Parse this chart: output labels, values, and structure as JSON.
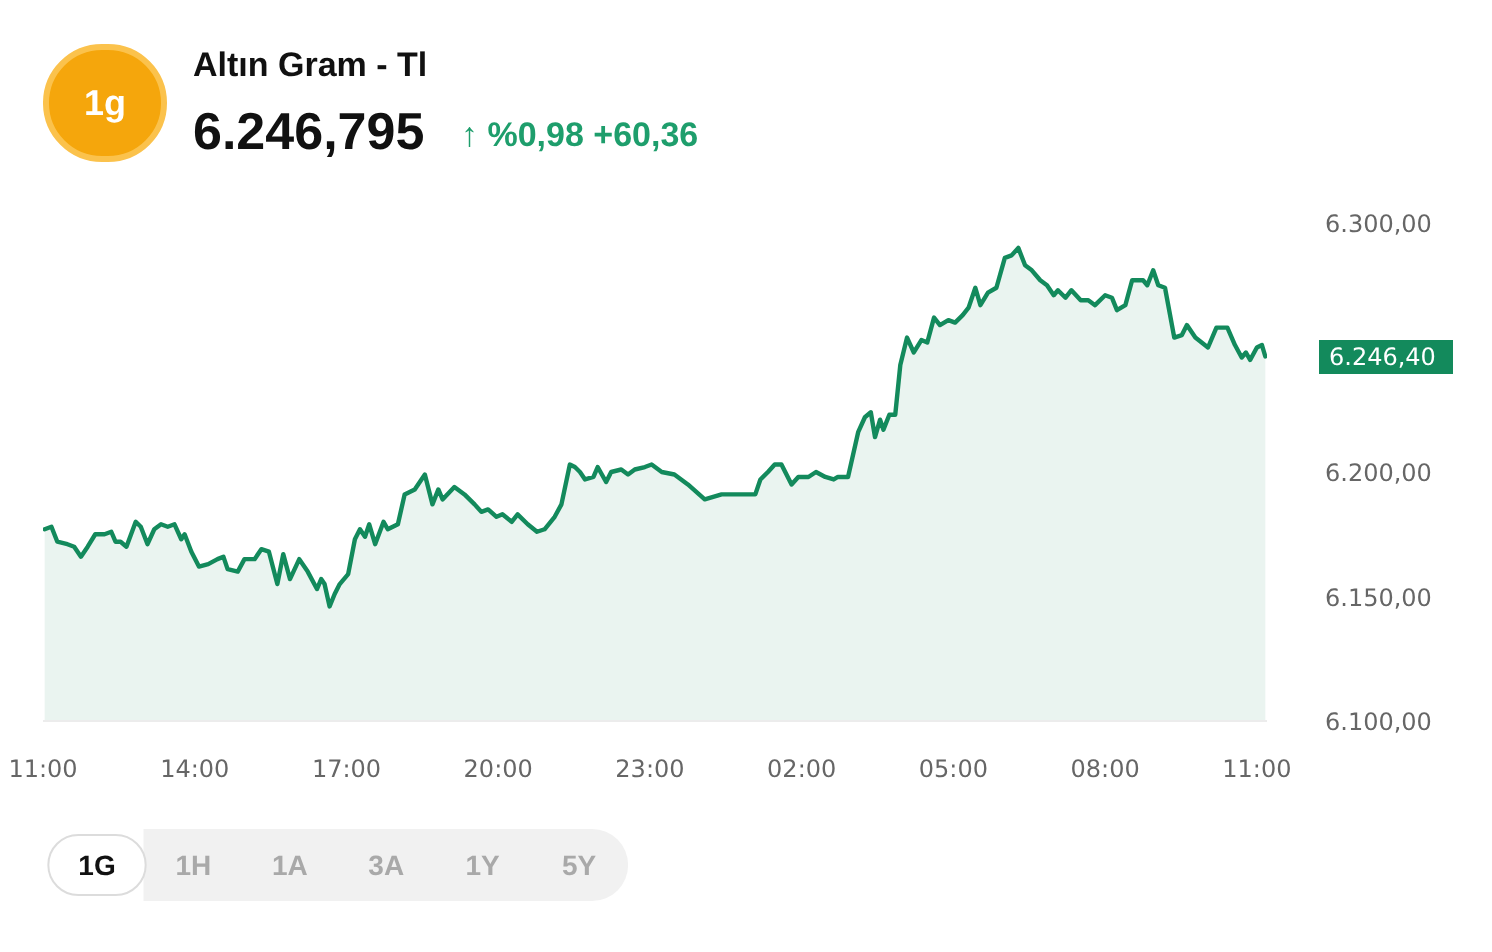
{
  "chart_data": {
    "type": "area",
    "title": "Altın Gram - Tl",
    "subtitle": "6.246,795",
    "color": "#138a5c",
    "grid": false,
    "annotations": [
      "1g",
      "↑ %0,98 +60,36",
      "6.246,40",
      "1G",
      "1H",
      "1A",
      "3A",
      "1Y",
      "5Y"
    ],
    "xlim": [
      "2000-01-01T11:00",
      "2000-01-02T11:12"
    ],
    "ylim": [
      6100,
      6300
    ],
    "xticks": [
      {
        "value": "2000-01-01T11:00",
        "label": "11:00"
      },
      {
        "value": "2000-01-01T14:00",
        "label": "14:00"
      },
      {
        "value": "2000-01-01T17:00",
        "label": "17:00"
      },
      {
        "value": "2000-01-01T20:00",
        "label": "20:00"
      },
      {
        "value": "2000-01-01T23:00",
        "label": "23:00"
      },
      {
        "value": "2000-01-02T02:00",
        "label": "02:00"
      },
      {
        "value": "2000-01-02T05:00",
        "label": "05:00"
      },
      {
        "value": "2000-01-02T08:00",
        "label": "08:00"
      },
      {
        "value": "2000-01-02T11:00",
        "label": "11:00"
      }
    ],
    "yticks": [
      {
        "value": 6100,
        "label": "6.100,00"
      },
      {
        "value": 6150,
        "label": "6.150,00"
      },
      {
        "value": 6200,
        "label": "6.200,00"
      },
      {
        "value": 6300,
        "label": "6.300,00"
      }
    ],
    "x": [
      "2000-01-01T11:02",
      "2000-01-01T11:10",
      "2000-01-01T11:17",
      "2000-01-01T11:29",
      "2000-01-01T11:37",
      "2000-01-01T11:45",
      "2000-01-01T11:53",
      "2000-01-01T12:02",
      "2000-01-01T12:13",
      "2000-01-01T12:21",
      "2000-01-01T12:26",
      "2000-01-01T12:32",
      "2000-01-01T12:39",
      "2000-01-01T12:50",
      "2000-01-01T12:56",
      "2000-01-01T13:04",
      "2000-01-01T13:12",
      "2000-01-01T13:20",
      "2000-01-01T13:28",
      "2000-01-01T13:36",
      "2000-01-01T13:44",
      "2000-01-01T13:48",
      "2000-01-01T13:56",
      "2000-01-01T14:05",
      "2000-01-01T14:16",
      "2000-01-01T14:27",
      "2000-01-01T14:34",
      "2000-01-01T14:39",
      "2000-01-01T14:51",
      "2000-01-01T14:59",
      "2000-01-01T15:11",
      "2000-01-01T15:19",
      "2000-01-01T15:28",
      "2000-01-01T15:38",
      "2000-01-01T15:45",
      "2000-01-01T15:53",
      "2000-01-01T16:04",
      "2000-01-01T16:14",
      "2000-01-01T16:25",
      "2000-01-01T16:30",
      "2000-01-01T16:34",
      "2000-01-01T16:40",
      "2000-01-01T16:46",
      "2000-01-01T16:52",
      "2000-01-01T17:02",
      "2000-01-01T17:10",
      "2000-01-01T17:16",
      "2000-01-01T17:22",
      "2000-01-01T17:27",
      "2000-01-01T17:34",
      "2000-01-01T17:44",
      "2000-01-01T17:49",
      "2000-01-01T18:01",
      "2000-01-01T18:09",
      "2000-01-01T18:21",
      "2000-01-01T18:33",
      "2000-01-01T18:42",
      "2000-01-01T18:49",
      "2000-01-01T18:54",
      "2000-01-01T19:08",
      "2000-01-01T19:20",
      "2000-01-01T19:32",
      "2000-01-01T19:40",
      "2000-01-01T19:48",
      "2000-01-01T19:58",
      "2000-01-01T20:05",
      "2000-01-01T20:16",
      "2000-01-01T20:23",
      "2000-01-01T20:35",
      "2000-01-01T20:46",
      "2000-01-01T20:55",
      "2000-01-01T21:07",
      "2000-01-01T21:15",
      "2000-01-01T21:25",
      "2000-01-01T21:31",
      "2000-01-01T21:37",
      "2000-01-01T21:43",
      "2000-01-01T21:53",
      "2000-01-01T21:58",
      "2000-01-01T22:08",
      "2000-01-01T22:14",
      "2000-01-01T22:26",
      "2000-01-01T22:34",
      "2000-01-01T22:42",
      "2000-01-01T22:54",
      "2000-01-01T23:02",
      "2000-01-01T23:14",
      "2000-01-01T23:29",
      "2000-01-01T23:45",
      "2000-01-02T00:05",
      "2000-01-02T00:25",
      "2000-01-02T00:49",
      "2000-01-02T01:05",
      "2000-01-02T01:11",
      "2000-01-02T01:20",
      "2000-01-02T01:28",
      "2000-01-02T01:36",
      "2000-01-02T01:48",
      "2000-01-02T01:56",
      "2000-01-02T02:08",
      "2000-01-02T02:17",
      "2000-01-02T02:28",
      "2000-01-02T02:38",
      "2000-01-02T02:43",
      "2000-01-02T02:55",
      "2000-01-02T03:07",
      "2000-01-02T03:15",
      "2000-01-02T03:22",
      "2000-01-02T03:27",
      "2000-01-02T03:33",
      "2000-01-02T03:37",
      "2000-01-02T03:44",
      "2000-01-02T03:51",
      "2000-01-02T03:57",
      "2000-01-02T04:05",
      "2000-01-02T04:13",
      "2000-01-02T04:22",
      "2000-01-02T04:29",
      "2000-01-02T04:37",
      "2000-01-02T04:44",
      "2000-01-02T04:54",
      "2000-01-02T05:02",
      "2000-01-02T05:11",
      "2000-01-02T05:18",
      "2000-01-02T05:26",
      "2000-01-02T05:32",
      "2000-01-02T05:41",
      "2000-01-02T05:51",
      "2000-01-02T06:01",
      "2000-01-02T06:09",
      "2000-01-02T06:17",
      "2000-01-02T06:25",
      "2000-01-02T06:33",
      "2000-01-02T06:43",
      "2000-01-02T06:51",
      "2000-01-02T06:59",
      "2000-01-02T07:04",
      "2000-01-02T07:13",
      "2000-01-02T07:20",
      "2000-01-02T07:31",
      "2000-01-02T07:40",
      "2000-01-02T07:48",
      "2000-01-02T08:00",
      "2000-01-02T08:08",
      "2000-01-02T08:14",
      "2000-01-02T08:24",
      "2000-01-02T08:32",
      "2000-01-02T08:45",
      "2000-01-02T08:50",
      "2000-01-02T08:57",
      "2000-01-02T09:03",
      "2000-01-02T09:11",
      "2000-01-02T09:22",
      "2000-01-02T09:31",
      "2000-01-02T09:37",
      "2000-01-02T09:47",
      "2000-01-02T10:02",
      "2000-01-02T10:12",
      "2000-01-02T10:25",
      "2000-01-02T10:34",
      "2000-01-02T10:42",
      "2000-01-02T10:47",
      "2000-01-02T10:52",
      "2000-01-02T11:00",
      "2000-01-02T11:06",
      "2000-01-02T11:10"
    ],
    "values": [
      6177,
      6178,
      6172,
      6171,
      6170,
      6166,
      6170,
      6175,
      6175,
      6176,
      6172,
      6172,
      6170,
      6180,
      6178,
      6171,
      6177,
      6179,
      6178,
      6179,
      6173,
      6175,
      6168,
      6162,
      6163,
      6165,
      6166,
      6161,
      6160,
      6165,
      6165,
      6169,
      6168,
      6155,
      6167,
      6157,
      6165,
      6160,
      6153,
      6157,
      6155,
      6146,
      6151,
      6155,
      6159,
      6173,
      6177,
      6174,
      6179,
      6171,
      6180,
      6177,
      6179,
      6191,
      6193,
      6199,
      6187,
      6193,
      6189,
      6194,
      6191,
      6187,
      6184,
      6185,
      6182,
      6183,
      6180,
      6183,
      6179,
      6176,
      6177,
      6182,
      6187,
      6203,
      6202,
      6200,
      6197,
      6198,
      6202,
      6196,
      6200,
      6201,
      6199,
      6201,
      6202,
      6203,
      6200,
      6199,
      6195,
      6189,
      6191,
      6191,
      6191,
      6197,
      6200,
      6203,
      6203,
      6195,
      6198,
      6198,
      6200,
      6198,
      6197,
      6198,
      6198,
      6216,
      6222,
      6224,
      6214,
      6221,
      6217,
      6223,
      6223,
      6243,
      6254,
      6248,
      6253,
      6252,
      6262,
      6259,
      6261,
      6260,
      6263,
      6266,
      6274,
      6267,
      6272,
      6274,
      6286,
      6287,
      6290,
      6283,
      6281,
      6277,
      6275,
      6271,
      6273,
      6270,
      6273,
      6269,
      6269,
      6267,
      6271,
      6270,
      6265,
      6267,
      6277,
      6277,
      6275,
      6281,
      6275,
      6274,
      6254,
      6255,
      6259,
      6254,
      6250,
      6258,
      6258,
      6251,
      6246,
      6248,
      6245,
      6250,
      6251,
      6246.4
    ]
  }
}
